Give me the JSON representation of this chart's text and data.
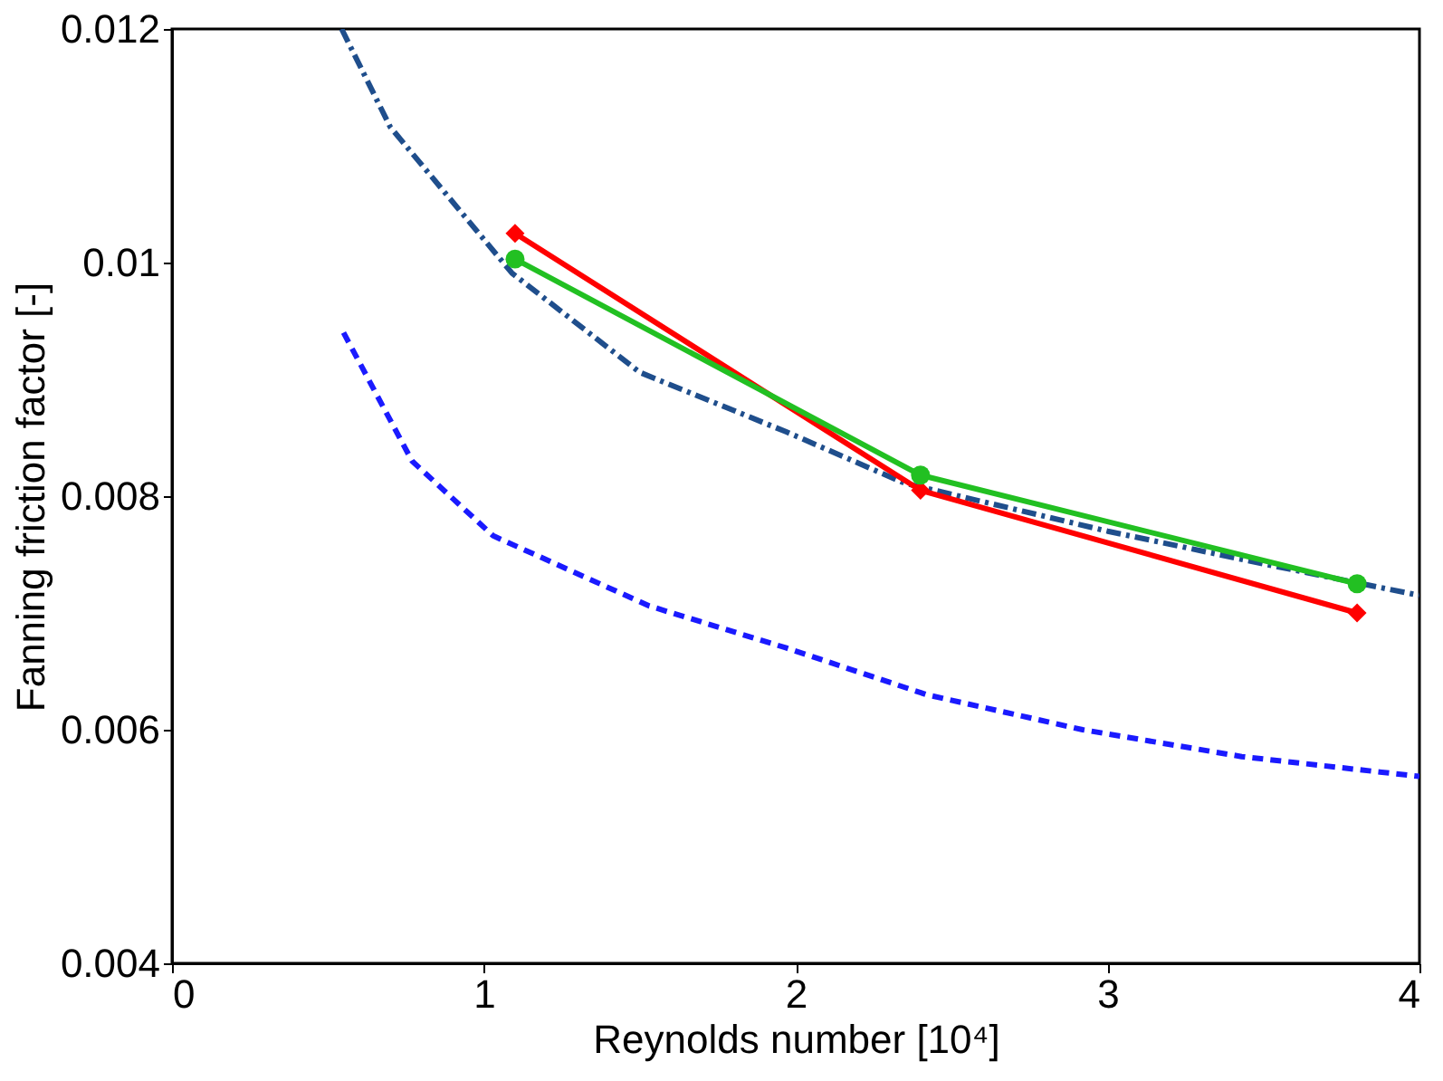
{
  "chart_data": {
    "type": "line",
    "xlabel": "Reynolds number [10⁴]",
    "ylabel": "Fanning friction factor [-]",
    "xlim": [
      0,
      4
    ],
    "xticks": [
      0,
      1,
      2,
      3,
      4
    ],
    "ylim": [
      0.004,
      0.012
    ],
    "yticks": [
      0.004,
      0.006,
      0.008,
      0.01,
      0.012
    ],
    "grid": false,
    "series": [
      {
        "color": "#1f4e8c",
        "line_style": "dashdot",
        "marker": "none",
        "x": [
          0.544,
          0.7,
          1.09,
          1.5,
          1.97,
          2.35,
          3.0,
          3.5,
          4.0
        ],
        "values": [
          0.012,
          0.01116,
          0.00991,
          0.00906,
          0.00855,
          0.00811,
          0.0077,
          0.00742,
          0.00715
        ]
      },
      {
        "color": "#1a1aff",
        "line_style": "dashed",
        "marker": "none",
        "x": [
          0.55,
          0.77,
          1.03,
          1.53,
          1.97,
          2.42,
          2.92,
          3.43,
          4.0
        ],
        "values": [
          0.0094,
          0.0083,
          0.00766,
          0.00706,
          0.0067,
          0.0063,
          0.006,
          0.00577,
          0.0056
        ]
      },
      {
        "color": "#ff0000",
        "line_style": "solid",
        "marker": "diamond",
        "x": [
          1.1,
          2.4,
          3.8
        ],
        "values": [
          0.01025,
          0.00805,
          0.007
        ]
      },
      {
        "color": "#22c022",
        "line_style": "solid",
        "marker": "circle",
        "x": [
          1.1,
          2.4,
          3.8
        ],
        "values": [
          0.01003,
          0.00818,
          0.00725
        ]
      }
    ]
  }
}
